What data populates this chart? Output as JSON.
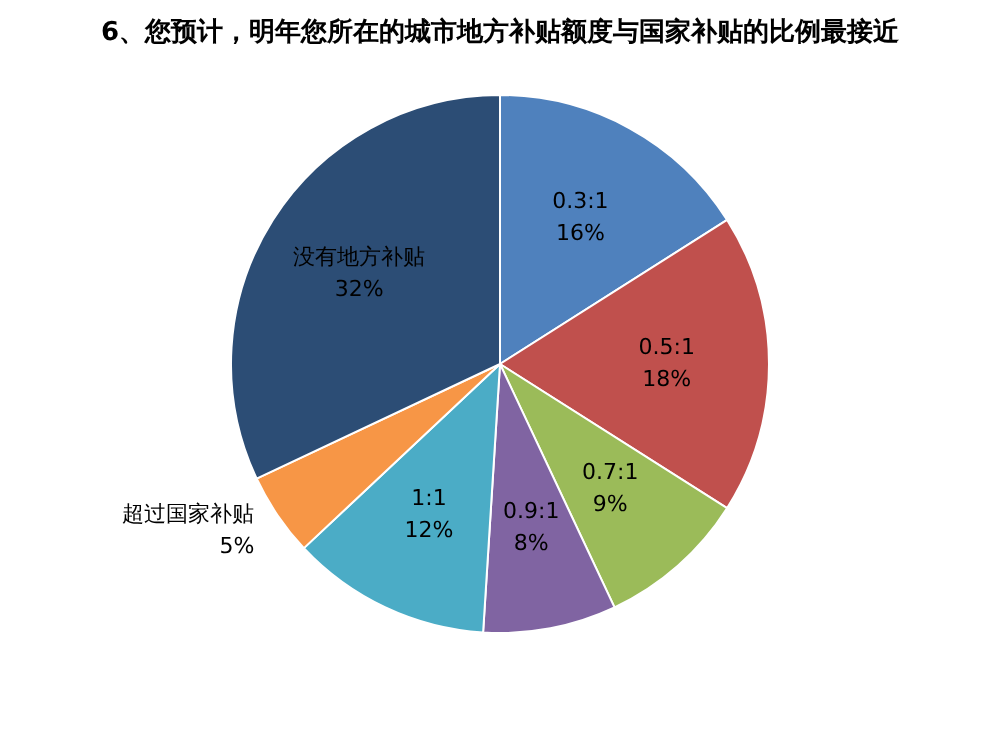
{
  "chart_data": {
    "type": "pie",
    "title": "6、您预计，明年您所在的城市地方补贴额度与国家补贴的比例最接近",
    "categories": [
      "0.3:1",
      "0.5:1",
      "0.7:1",
      "0.9:1",
      "1:1",
      "超过国家补贴",
      "没有地方补贴"
    ],
    "values": [
      16,
      18,
      9,
      8,
      12,
      5,
      32
    ],
    "value_labels": [
      "16%",
      "18%",
      "9%",
      "8%",
      "12%",
      "5%",
      "32%"
    ],
    "colors": [
      "#4f81bd",
      "#c0504d",
      "#9bbb59",
      "#8064a2",
      "#4bacc6",
      "#f79646",
      "#2c4d75"
    ],
    "legend": false
  }
}
